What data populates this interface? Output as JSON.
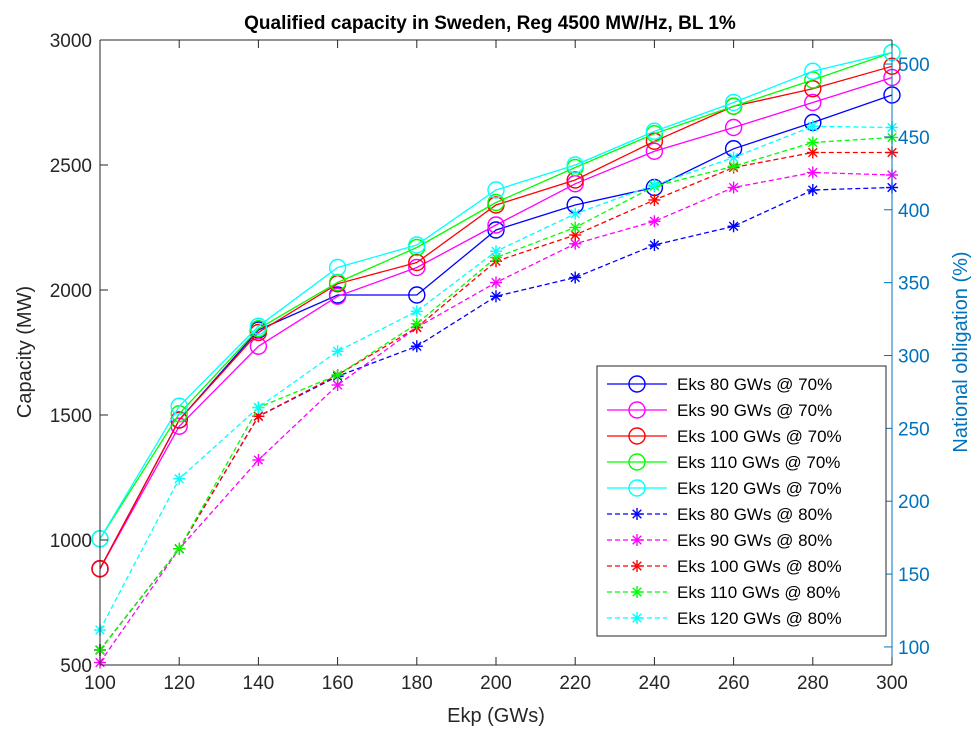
{
  "chart_data": {
    "type": "line",
    "title": "Qualified capacity in Sweden, Reg 4500 MW/Hz, BL 1%",
    "xlabel": "Ekp (GWs)",
    "ylabel": "Capacity (MW)",
    "ylabel_right": "National obligation (%)",
    "xlim": [
      100,
      300
    ],
    "ylim": [
      500,
      3000
    ],
    "ylim_right": [
      87.6,
      516.5
    ],
    "x_ticks": [
      "100",
      "120",
      "140",
      "160",
      "180",
      "200",
      "220",
      "240",
      "260",
      "280",
      "300"
    ],
    "y_ticks": [
      "500",
      "1000",
      "1500",
      "2000",
      "2500",
      "3000"
    ],
    "y_ticks_right": [
      "100",
      "150",
      "200",
      "250",
      "300",
      "350",
      "400",
      "450",
      "500"
    ],
    "y_tick_values_right": [
      100,
      150,
      200,
      250,
      300,
      350,
      400,
      450,
      500
    ],
    "grid": false,
    "legend_position": "bottom-right",
    "x": [
      100,
      120,
      140,
      160,
      180,
      200,
      220,
      240,
      260,
      280,
      300
    ],
    "series": [
      {
        "name": "Eks 80 GWs @ 70%",
        "color": "#0000ff",
        "marker": "circle",
        "dash": "solid",
        "values": [
          885,
          1480,
          1840,
          1980,
          1980,
          2240,
          2340,
          2410,
          2565,
          2670,
          2780
        ]
      },
      {
        "name": "Eks 90 GWs @ 70%",
        "color": "#ff00ff",
        "marker": "circle",
        "dash": "solid",
        "values": [
          885,
          1455,
          1775,
          1975,
          2090,
          2260,
          2425,
          2555,
          2650,
          2750,
          2850
        ]
      },
      {
        "name": "Eks 100 GWs @ 70%",
        "color": "#ff0000",
        "marker": "circle",
        "dash": "solid",
        "values": [
          885,
          1480,
          1830,
          2025,
          2110,
          2340,
          2440,
          2595,
          2735,
          2805,
          2895
        ]
      },
      {
        "name": "Eks 110 GWs @ 70%",
        "color": "#00ff00",
        "marker": "circle",
        "dash": "solid",
        "values": [
          1005,
          1505,
          1845,
          2030,
          2170,
          2350,
          2490,
          2625,
          2735,
          2840,
          2950
        ]
      },
      {
        "name": "Eks 120 GWs @ 70%",
        "color": "#00ffff",
        "marker": "circle",
        "dash": "solid",
        "values": [
          1005,
          1535,
          1855,
          2090,
          2180,
          2400,
          2500,
          2635,
          2750,
          2875,
          2950
        ]
      },
      {
        "name": "Eks 80 GWs @ 80%",
        "color": "#0000ff",
        "marker": "star",
        "dash": "dashed",
        "values": [
          560,
          965,
          1495,
          1655,
          1775,
          1975,
          2050,
          2180,
          2255,
          2400,
          2410
        ]
      },
      {
        "name": "Eks 90 GWs @ 80%",
        "color": "#ff00ff",
        "marker": "star",
        "dash": "dashed",
        "values": [
          510,
          965,
          1320,
          1620,
          1850,
          2030,
          2185,
          2275,
          2410,
          2470,
          2460
        ]
      },
      {
        "name": "Eks 100 GWs @ 80%",
        "color": "#ff0000",
        "marker": "star",
        "dash": "dashed",
        "values": [
          560,
          965,
          1495,
          1660,
          1850,
          2115,
          2220,
          2360,
          2490,
          2550,
          2550
        ]
      },
      {
        "name": "Eks 110 GWs @ 80%",
        "color": "#00ff00",
        "marker": "star",
        "dash": "dashed",
        "values": [
          560,
          965,
          1530,
          1660,
          1865,
          2130,
          2250,
          2415,
          2495,
          2590,
          2610
        ]
      },
      {
        "name": "Eks 120 GWs @ 80%",
        "color": "#00ffff",
        "marker": "star",
        "dash": "dashed",
        "values": [
          640,
          1245,
          1530,
          1755,
          1915,
          2155,
          2305,
          2420,
          2530,
          2655,
          2650
        ]
      }
    ]
  }
}
